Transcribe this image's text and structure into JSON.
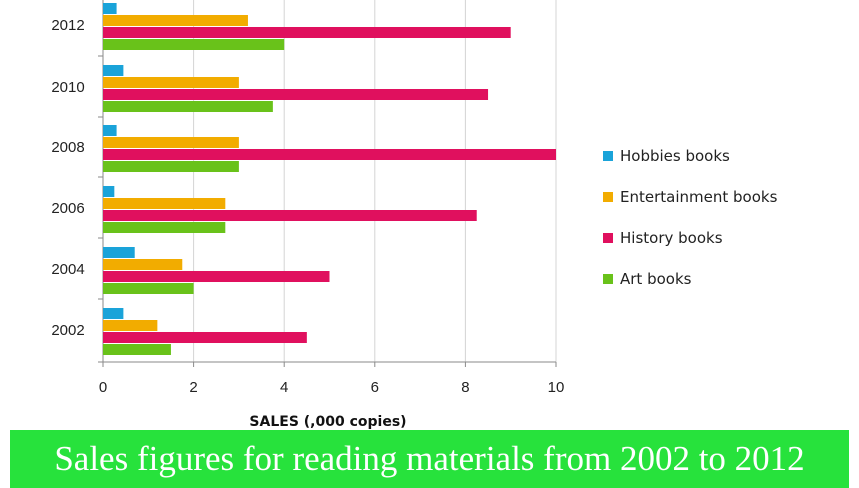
{
  "chart_data": {
    "type": "bar",
    "orientation": "horizontal",
    "categories": [
      "2012",
      "2010",
      "2008",
      "2006",
      "2004",
      "2002"
    ],
    "series": [
      {
        "name": "Hobbies books",
        "color": "#1aa3d9",
        "values": [
          0.3,
          0.45,
          0.3,
          0.25,
          0.7,
          0.45
        ]
      },
      {
        "name": "Entertainment books",
        "color": "#f2ac00",
        "values": [
          3.2,
          3.0,
          3.0,
          2.7,
          1.75,
          1.2
        ]
      },
      {
        "name": "History books",
        "color": "#e0105e",
        "values": [
          9.0,
          8.5,
          10.0,
          8.25,
          5.0,
          4.5
        ]
      },
      {
        "name": "Art books",
        "color": "#69c21a",
        "values": [
          4.0,
          3.75,
          3.0,
          2.7,
          2.0,
          1.5
        ]
      }
    ],
    "xlim": [
      0,
      10
    ],
    "xticks": [
      0,
      2,
      4,
      6,
      8,
      10
    ],
    "xlabel": "SALES (,000 copies)",
    "ylabel": "",
    "grid": "vertical",
    "legend_position": "right"
  },
  "banner": {
    "text": "Sales figures for reading materials from 2002 to 2012",
    "color": "#27e23c"
  }
}
